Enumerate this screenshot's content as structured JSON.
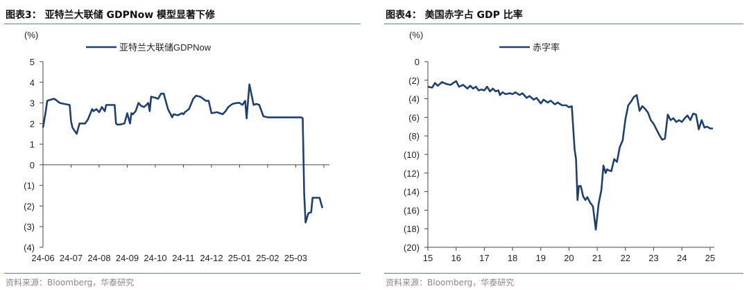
{
  "charts": [
    {
      "title": "图表3： 亚特兰大联储 GDPNow 模型显著下修",
      "source": "资料来源：Bloomberg，华泰研究"
    },
    {
      "title": "图表4： 美国赤字占 GDP 比率",
      "source": "资料来源：Bloomberg，华泰研究"
    }
  ],
  "chart_data": [
    {
      "type": "line",
      "title": "",
      "ylabel": "(%)",
      "xlabel": "",
      "ylim": [
        -4,
        5
      ],
      "yticks": [
        5,
        4,
        3,
        2,
        1,
        0,
        -1,
        -2,
        -3,
        -4
      ],
      "ytick_labels": [
        "5",
        "4",
        "3",
        "2",
        "1",
        "0",
        "(1)",
        "(2)",
        "(3)",
        "(4)"
      ],
      "xtick_labels": [
        "24-06",
        "24-07",
        "24-08",
        "24-09",
        "24-10",
        "24-11",
        "24-12",
        "25-01",
        "25-02",
        "25-03"
      ],
      "xlim": [
        0,
        10.2
      ],
      "legend": "top-center",
      "grid": false,
      "color": "#1f3f6e",
      "series": [
        {
          "name": "亚特兰大联储GDPNow",
          "x": [
            0,
            0.1,
            0.15,
            0.25,
            0.4,
            0.5,
            0.6,
            0.75,
            0.95,
            0.98,
            1.0,
            1.05,
            1.2,
            1.3,
            1.5,
            1.6,
            1.75,
            1.8,
            1.9,
            2.0,
            2.1,
            2.2,
            2.25,
            2.35,
            2.5,
            2.55,
            2.6,
            2.65,
            2.75,
            2.9,
            3.0,
            3.1,
            3.15,
            3.2,
            3.3,
            3.4,
            3.5,
            3.6,
            3.75,
            3.8,
            3.85,
            4.0,
            4.1,
            4.2,
            4.3,
            4.45,
            4.6,
            4.65,
            4.8,
            4.95,
            5.0,
            5.05,
            5.1,
            5.2,
            5.35,
            5.45,
            5.6,
            5.7,
            5.8,
            5.9,
            6.0,
            6.2,
            6.4,
            6.5,
            6.6,
            6.75,
            6.9,
            7.0,
            7.1,
            7.2,
            7.25,
            7.35,
            7.5,
            7.6,
            7.7,
            7.85,
            8.0,
            8.1,
            8.15,
            8.2,
            8.25,
            8.3,
            8.35,
            8.4,
            8.5,
            8.55,
            8.6,
            8.9,
            9.05,
            9.1,
            9.2,
            9.25,
            9.3,
            9.35,
            9.45,
            9.55,
            9.6,
            9.7,
            9.85,
            9.95
          ],
          "values": [
            1.8,
            2.6,
            3.1,
            3.15,
            3.2,
            3.1,
            3.0,
            2.95,
            2.9,
            2.4,
            2.1,
            1.8,
            1.5,
            2.0,
            2.0,
            2.2,
            2.7,
            2.6,
            2.7,
            2.55,
            2.8,
            2.6,
            2.9,
            2.9,
            2.9,
            2.9,
            2.0,
            1.95,
            1.95,
            2.0,
            2.5,
            2.0,
            2.5,
            2.45,
            2.6,
            3.0,
            2.85,
            2.8,
            3.0,
            2.6,
            3.3,
            3.25,
            3.2,
            3.45,
            3.45,
            2.7,
            2.3,
            2.45,
            2.4,
            2.5,
            2.45,
            2.55,
            2.6,
            2.7,
            3.2,
            3.35,
            3.3,
            3.2,
            3.1,
            3.1,
            2.5,
            2.55,
            2.45,
            2.6,
            2.8,
            2.95,
            3.0,
            3.0,
            2.9,
            3.1,
            2.25,
            3.9,
            2.9,
            2.95,
            2.9,
            2.35,
            2.3,
            2.3,
            2.3,
            2.3,
            2.3,
            2.3,
            2.3,
            2.3,
            2.3,
            2.3,
            2.3,
            2.3,
            2.3,
            2.3,
            2.3,
            2.25,
            -1.4,
            -2.8,
            -2.35,
            -2.3,
            -1.6,
            -1.6,
            -1.6,
            -2.1
          ]
        }
      ]
    },
    {
      "type": "line",
      "title": "",
      "ylabel": "(%)",
      "xlabel": "",
      "ylim": [
        -20,
        0
      ],
      "yticks": [
        0,
        -2,
        -4,
        -6,
        -8,
        -10,
        -12,
        -14,
        -16,
        -18,
        -20
      ],
      "ytick_labels": [
        "0",
        "(2)",
        "(4)",
        "(6)",
        "(8)",
        "(10)",
        "(12)",
        "(14)",
        "(16)",
        "(18)",
        "(20)"
      ],
      "xtick_labels": [
        "15",
        "16",
        "17",
        "18",
        "19",
        "20",
        "21",
        "22",
        "23",
        "24",
        "25"
      ],
      "xlim": [
        2015,
        2025.15
      ],
      "legend": "top-center",
      "grid": false,
      "color": "#1f3f6e",
      "series": [
        {
          "name": "赤字率",
          "x": [
            2015.0,
            2015.15,
            2015.25,
            2015.35,
            2015.5,
            2015.65,
            2015.8,
            2016.0,
            2016.1,
            2016.25,
            2016.4,
            2016.5,
            2016.6,
            2016.7,
            2016.8,
            2016.9,
            2017.0,
            2017.1,
            2017.2,
            2017.3,
            2017.4,
            2017.5,
            2017.55,
            2017.65,
            2017.75,
            2017.9,
            2018.0,
            2018.1,
            2018.25,
            2018.35,
            2018.5,
            2018.6,
            2018.75,
            2018.85,
            2019.0,
            2019.1,
            2019.25,
            2019.35,
            2019.5,
            2019.6,
            2019.75,
            2019.9,
            2020.0,
            2020.1,
            2020.2,
            2020.25,
            2020.3,
            2020.35,
            2020.42,
            2020.5,
            2020.58,
            2020.65,
            2020.75,
            2020.85,
            2020.95,
            2021.05,
            2021.15,
            2021.22,
            2021.3,
            2021.35,
            2021.4,
            2021.5,
            2021.6,
            2021.7,
            2021.8,
            2021.9,
            2022.0,
            2022.1,
            2022.2,
            2022.3,
            2022.4,
            2022.5,
            2022.6,
            2022.7,
            2022.8,
            2022.9,
            2023.0,
            2023.1,
            2023.2,
            2023.3,
            2023.4,
            2023.5,
            2023.6,
            2023.7,
            2023.8,
            2023.9,
            2024.0,
            2024.1,
            2024.2,
            2024.3,
            2024.4,
            2024.5,
            2024.6,
            2024.7,
            2024.8,
            2024.9,
            2025.0,
            2025.1
          ],
          "values": [
            -2.7,
            -2.8,
            -2.3,
            -2.6,
            -2.2,
            -2.4,
            -2.5,
            -2.1,
            -2.7,
            -2.5,
            -2.9,
            -2.6,
            -2.9,
            -2.7,
            -3.1,
            -3.0,
            -3.1,
            -2.7,
            -3.2,
            -2.9,
            -3.2,
            -3.1,
            -3.6,
            -3.3,
            -3.5,
            -3.4,
            -3.5,
            -3.3,
            -3.6,
            -3.4,
            -3.9,
            -3.7,
            -4.1,
            -3.9,
            -4.5,
            -4.1,
            -4.4,
            -4.2,
            -4.6,
            -4.4,
            -4.7,
            -4.7,
            -4.9,
            -4.8,
            -9.5,
            -10.5,
            -14.9,
            -13.4,
            -13.4,
            -14.5,
            -14.9,
            -14.6,
            -15.2,
            -15.6,
            -18.1,
            -15.3,
            -13.8,
            -11.2,
            -12.0,
            -11.6,
            -11.7,
            -11.8,
            -10.5,
            -10.8,
            -9.2,
            -8.5,
            -6.2,
            -4.7,
            -4.3,
            -3.8,
            -3.6,
            -5.3,
            -4.8,
            -5.1,
            -5.5,
            -6.3,
            -6.7,
            -7.3,
            -7.9,
            -8.4,
            -8.3,
            -5.7,
            -6.3,
            -6.1,
            -6.5,
            -6.3,
            -6.5,
            -6.1,
            -5.8,
            -6.3,
            -5.6,
            -5.7,
            -7.3,
            -6.3,
            -7.1,
            -7.0,
            -7.2,
            -7.2
          ]
        }
      ]
    }
  ]
}
